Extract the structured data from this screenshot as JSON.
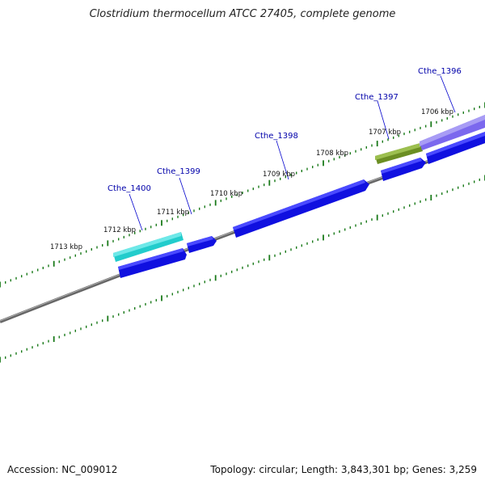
{
  "title": "Clostridium thermocellum ATCC 27405, complete genome",
  "accession": "Accession: NC_009012",
  "summary": "Topology: circular; Length: 3,843,301 bp; Genes: 3,259",
  "kbp_labels": [
    "1713 kbp",
    "1712 kbp",
    "1711 kbp",
    "1710 kbp",
    "1709 kbp",
    "1708 kbp",
    "1707 kbp",
    "1706 kbp"
  ],
  "gene_labels": [
    "Cthe_1400",
    "Cthe_1399",
    "Cthe_1398",
    "Cthe_1397",
    "Cthe_1396"
  ],
  "colors": {
    "backbone": "#808080",
    "tick": "#1a7a1a",
    "cds_blue": "#1010e0",
    "cthe_1400": "#22cccc",
    "cthe_1397": "#6b8e23",
    "cthe_1396": "#7b68ee",
    "label_line": "#0000cc"
  }
}
